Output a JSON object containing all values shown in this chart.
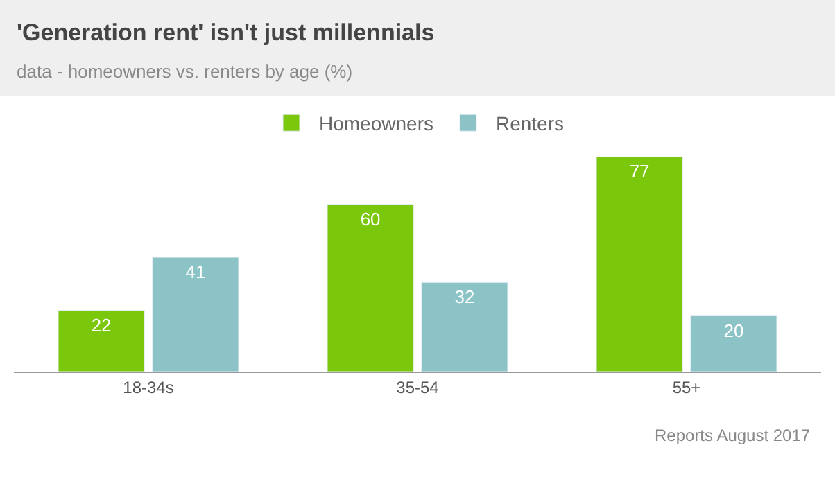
{
  "chart_data": {
    "type": "bar",
    "title": "'Generation rent' isn't just millennials",
    "subtitle": "data - homeowners vs. renters by age (%)",
    "categories": [
      "18-34s",
      "35-54",
      "55+"
    ],
    "series": [
      {
        "name": "Homeowners",
        "color": "#7ac70c",
        "values": [
          22,
          60,
          77
        ]
      },
      {
        "name": "Renters",
        "color": "#8bc3c6",
        "values": [
          41,
          32,
          20
        ]
      }
    ],
    "data_labels": true,
    "legend": "top",
    "annotations": [
      "Reports August 2017"
    ]
  }
}
